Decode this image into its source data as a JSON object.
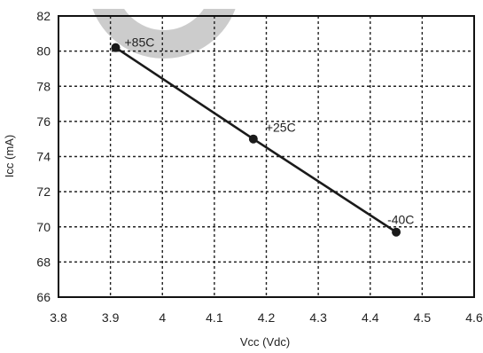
{
  "chart_data": {
    "type": "line",
    "xlabel": "Vcc (Vdc)",
    "ylabel": "Icc (mA)",
    "xlim": [
      3.8,
      4.6
    ],
    "ylim": [
      66,
      82
    ],
    "xticks": [
      "3.8",
      "3.9",
      "4",
      "4.1",
      "4.2",
      "4.3",
      "4.4",
      "4.5",
      "4.6"
    ],
    "yticks": [
      "66",
      "68",
      "70",
      "72",
      "74",
      "76",
      "78",
      "80",
      "82"
    ],
    "grid": true,
    "series": [
      {
        "x": [
          3.91,
          4.175,
          4.45
        ],
        "y": [
          80.2,
          75.0,
          69.7
        ],
        "point_labels": [
          "+85C",
          "+25C",
          "-40C"
        ],
        "color": "#1a1a1a"
      }
    ]
  }
}
